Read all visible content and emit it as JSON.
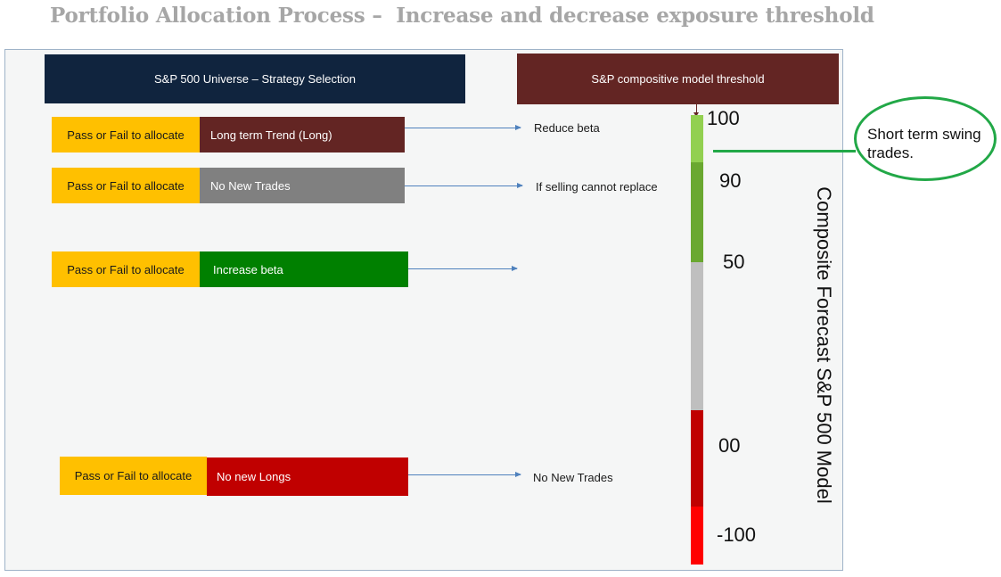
{
  "title": "Portfolio Allocation Process –  Increase and decrease exposure threshold",
  "headers": {
    "left": "S&P 500 Universe – Strategy Selection",
    "right": "S&P compositive model threshold"
  },
  "rows": [
    {
      "pf": "Pass or Fail to allocate",
      "label": "Long term Trend (Long)",
      "label_color": "#632523",
      "outcome": "Reduce beta"
    },
    {
      "pf": "Pass or Fail to allocate",
      "label": "No New Trades",
      "label_color": "#808080",
      "outcome": "If selling cannot replace"
    },
    {
      "pf": "Pass or Fail to allocate",
      "label": "Increase beta",
      "label_color": "#008000",
      "outcome": ""
    },
    {
      "pf": "Pass or Fail to allocate",
      "label": "No new Longs",
      "label_color": "#c00000",
      "outcome": "No New Trades"
    }
  ],
  "scale": {
    "ticks": [
      "100",
      "90",
      "50",
      "00",
      "-100"
    ],
    "label": "Composite Forecast S&P 500 Model",
    "colors": [
      "#92d050",
      "#6aa830",
      "#bfbfbf",
      "#c00000",
      "#ff0000"
    ]
  },
  "callout": {
    "text": "Short term swing trades."
  }
}
